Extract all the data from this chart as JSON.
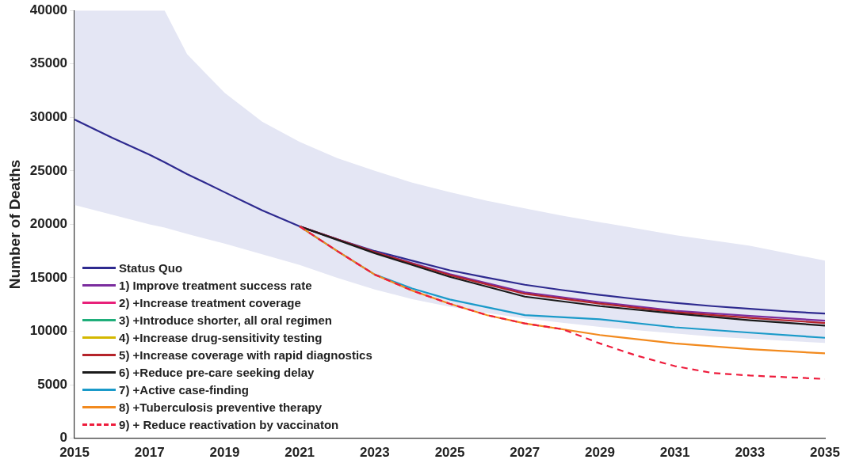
{
  "chart_data": {
    "type": "line",
    "ylabel": "Number of Deaths",
    "xlim": [
      2015,
      2035
    ],
    "xticks": [
      2015,
      2017,
      2019,
      2021,
      2023,
      2025,
      2027,
      2029,
      2031,
      2033,
      2035
    ],
    "ylim": [
      0,
      40000
    ],
    "yticks": [
      0,
      5000,
      10000,
      15000,
      20000,
      25000,
      30000,
      35000,
      40000
    ],
    "grid": false,
    "legend": "bottom left",
    "marker": "none",
    "series": [
      {
        "name": "Status Quo",
        "color": "#2e2a8f",
        "x": [
          2015,
          2016,
          2017,
          2017.4,
          2018,
          2019,
          2020,
          2021,
          2022,
          2023,
          2024,
          2025,
          2026,
          2027,
          2028,
          2029,
          2030,
          2031,
          2032,
          2033,
          2034,
          2035
        ],
        "values": [
          29800,
          28100,
          26500,
          25800,
          24700,
          23000,
          21300,
          19800,
          18600,
          17500,
          16600,
          15700,
          15000,
          14350,
          13850,
          13400,
          13000,
          12650,
          12350,
          12100,
          11850,
          11650
        ],
        "lower": [
          21800,
          20900,
          20000,
          19700,
          19100,
          18200,
          17200,
          16200,
          15000,
          13900,
          13000,
          12300,
          11700,
          11200,
          10800,
          10400,
          10100,
          9800,
          9500,
          9300,
          9100,
          8900
        ],
        "upper": [
          40000,
          40000,
          40000,
          40000,
          35900,
          32300,
          29600,
          27700,
          26200,
          25000,
          23900,
          23000,
          22200,
          21500,
          20800,
          20200,
          19600,
          19000,
          18500,
          18000,
          17300,
          16600
        ]
      },
      {
        "name": "1) Improve treatment success rate",
        "color": "#7b2d9e",
        "x": [
          2021,
          2023,
          2025,
          2027,
          2029,
          2031,
          2033,
          2035
        ],
        "values": [
          19800,
          17400,
          15350,
          13640,
          12720,
          11910,
          11430,
          10990
        ]
      },
      {
        "name": "2) +Increase treatment coverage",
        "color": "#e8217a"
      },
      {
        "name": "3) +Introduce shorter, all oral regimen",
        "color": "#1fae7a"
      },
      {
        "name": "4) +Increase drug-sensitivity testing",
        "color": "#d4b800"
      },
      {
        "name": "5) +Increase coverage with rapid diagnostics",
        "color": "#b5232a",
        "x": [
          2021,
          2023,
          2025,
          2027,
          2029,
          2031,
          2033,
          2035
        ],
        "values": [
          19800,
          17400,
          15250,
          13500,
          12580,
          11780,
          11250,
          10770
        ]
      },
      {
        "name": "6) +Reduce pre-care seeking delay",
        "color": "#1a1a1a",
        "x": [
          2021,
          2023,
          2025,
          2027,
          2029,
          2031,
          2033,
          2035
        ],
        "values": [
          19800,
          17300,
          15090,
          13240,
          12350,
          11650,
          11030,
          10530
        ]
      },
      {
        "name": "7) +Active case-finding",
        "color": "#1a9ac9",
        "x": [
          2021,
          2022,
          2023,
          2024,
          2025,
          2027,
          2029,
          2031,
          2033,
          2035
        ],
        "values": [
          19800,
          17500,
          15300,
          14000,
          12970,
          11510,
          11120,
          10370,
          9870,
          9390
        ]
      },
      {
        "name": "8) +Tuberculosis preventive therapy",
        "color": "#f28a1e",
        "x": [
          2021,
          2022,
          2023,
          2024,
          2025,
          2026,
          2027,
          2029,
          2031,
          2033,
          2035
        ],
        "values": [
          19800,
          17500,
          15300,
          13800,
          12570,
          11500,
          10730,
          9650,
          8860,
          8320,
          7930
        ]
      },
      {
        "name": "9) + Reduce reactivation by vaccinaton",
        "color": "#ee1c3c",
        "line_style": "dashed",
        "x": [
          2021,
          2022,
          2023,
          2024,
          2025,
          2026,
          2027,
          2028,
          2029,
          2030,
          2031,
          2032,
          2033,
          2034,
          2035
        ],
        "values": [
          19800,
          17500,
          15300,
          13800,
          12570,
          11500,
          10730,
          10200,
          8860,
          7700,
          6740,
          6100,
          5860,
          5700,
          5540
        ]
      }
    ]
  }
}
